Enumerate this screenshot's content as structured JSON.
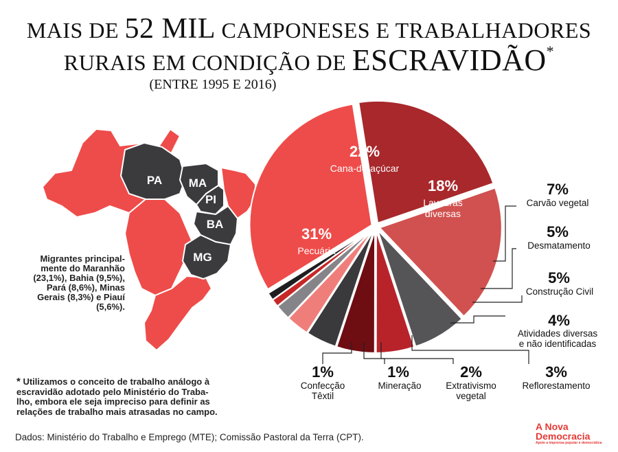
{
  "title": {
    "line1_a": "MAIS DE ",
    "line1_b": "52 MIL",
    "line1_c": " CAMPONESES E TRABALHADORES",
    "line2_a": "RURAIS EM CONDIÇÃO DE ",
    "line2_b": "ESCRAVIDÃO",
    "line2_c": "*",
    "line3": "(ENTRE 1995 E 2016)"
  },
  "map": {
    "states": [
      "PA",
      "MA",
      "PI",
      "BA",
      "MG"
    ],
    "caption": [
      "Migrantes principal-",
      "mente do Maranhão",
      "(23,1%), Bahia (9,5%),",
      "Pará (8,6%), Minas",
      "Gerais (8,3%) e Piauí",
      "(5,6%)."
    ]
  },
  "chart_data": {
    "type": "pie",
    "unit": "%",
    "slices": [
      {
        "label": "Cana-de-açúcar",
        "value": 22,
        "display": "22%",
        "color": "#a8282b"
      },
      {
        "label": "Lavouras diversas",
        "value": 18,
        "display": "18%",
        "color": "#d0514f"
      },
      {
        "label": "Carvão vegetal",
        "value": 7,
        "display": "7%",
        "color": "#555558"
      },
      {
        "label": "Desmatamento",
        "value": 5,
        "display": "5%",
        "color": "#b8232a"
      },
      {
        "label": "Construção Civil",
        "value": 5,
        "display": "5%",
        "color": "#6e0d12"
      },
      {
        "label": "Atividades diversas e não identificadas",
        "value": 4,
        "display": "4%",
        "color": "#3a3a3d"
      },
      {
        "label": "Reflorestamento",
        "value": 3,
        "display": "3%",
        "color": "#ef7e7b"
      },
      {
        "label": "Extrativismo vegetal",
        "value": 2,
        "display": "2%",
        "color": "#858589"
      },
      {
        "label": "Mineração",
        "value": 1,
        "display": "1%",
        "color": "#c62828"
      },
      {
        "label": "Confecção Têxtil",
        "value": 1,
        "display": "1%",
        "color": "#1e1e20"
      },
      {
        "label": "Pecuária",
        "value": 31,
        "display": "31%",
        "color": "#ee4c4a"
      }
    ],
    "inside_labels": [
      {
        "value": "22%",
        "label": "Cana-de-açúcar"
      },
      {
        "value": "18%",
        "label": "Lavouras diversas"
      },
      {
        "value": "31%",
        "label": "Pecuária"
      }
    ],
    "outside_labels": [
      {
        "value": "7%",
        "label": "Carvão vegetal"
      },
      {
        "value": "5%",
        "label": "Desmatamento"
      },
      {
        "value": "5%",
        "label": "Construção Civil"
      },
      {
        "value": "4%",
        "label": "Atividades diversas e não identificadas"
      },
      {
        "value": "3%",
        "label": "Reflorestamento"
      },
      {
        "value": "2%",
        "label": "Extrativismo vegetal"
      },
      {
        "value": "1%",
        "label": "Mineração"
      },
      {
        "value": "1%",
        "label": "Confecção Têxtil"
      }
    ]
  },
  "note": {
    "marker": "*",
    "text": [
      "Utilizamos o conceito de trabalho análogo à",
      "escravidão adotado pelo Ministério do Traba-",
      "lho, embora ele seja impreciso para definir as",
      "relações de trabalho mais atrasadas no campo."
    ]
  },
  "source": "Dados: Ministério do Trabalho e Emprego (MTE); Comissão Pastoral da Terra (CPT).",
  "logo": {
    "line1": "A Nova",
    "line2": "Democracia",
    "tagline": "Apoie a imprensa popular e democrática"
  },
  "colors": {
    "red": "#ee4c4a",
    "dark": "#3b3b3e",
    "accent": "#e53935"
  }
}
